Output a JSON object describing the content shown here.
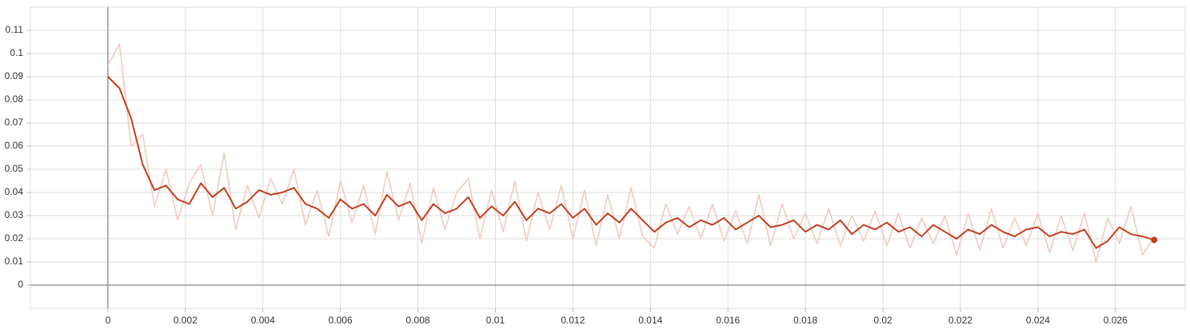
{
  "chart_data": {
    "type": "line",
    "x": [
      0,
      0.0003,
      0.0006,
      0.0009,
      0.0012,
      0.0015,
      0.0018,
      0.0021,
      0.0024,
      0.0027,
      0.003,
      0.0033,
      0.0036,
      0.0039,
      0.0042,
      0.0045,
      0.0048,
      0.0051,
      0.0054,
      0.0057,
      0.006,
      0.0063,
      0.0066,
      0.0069,
      0.0072,
      0.0075,
      0.0078,
      0.0081,
      0.0084,
      0.0087,
      0.009,
      0.0093,
      0.0096,
      0.0099,
      0.0102,
      0.0105,
      0.0108,
      0.0111,
      0.0114,
      0.0117,
      0.012,
      0.0123,
      0.0126,
      0.0129,
      0.0132,
      0.0135,
      0.0138,
      0.0141,
      0.0144,
      0.0147,
      0.015,
      0.0153,
      0.0156,
      0.0159,
      0.0162,
      0.0165,
      0.0168,
      0.0171,
      0.0174,
      0.0177,
      0.018,
      0.0183,
      0.0186,
      0.0189,
      0.0192,
      0.0195,
      0.0198,
      0.0201,
      0.0204,
      0.0207,
      0.021,
      0.0213,
      0.0216,
      0.0219,
      0.0222,
      0.0225,
      0.0228,
      0.0231,
      0.0234,
      0.0237,
      0.024,
      0.0243,
      0.0246,
      0.0249,
      0.0252,
      0.0255,
      0.0258,
      0.0261,
      0.0264,
      0.0267,
      0.027
    ],
    "series": [
      {
        "color": "#c0401f",
        "values": [
          0.09,
          0.085,
          0.072,
          0.052,
          0.041,
          0.043,
          0.037,
          0.035,
          0.044,
          0.038,
          0.042,
          0.033,
          0.036,
          0.041,
          0.039,
          0.04,
          0.042,
          0.035,
          0.033,
          0.029,
          0.037,
          0.033,
          0.035,
          0.03,
          0.039,
          0.034,
          0.036,
          0.028,
          0.035,
          0.031,
          0.033,
          0.038,
          0.029,
          0.034,
          0.03,
          0.036,
          0.028,
          0.033,
          0.031,
          0.035,
          0.029,
          0.033,
          0.026,
          0.031,
          0.027,
          0.033,
          0.028,
          0.023,
          0.027,
          0.029,
          0.025,
          0.028,
          0.026,
          0.029,
          0.024,
          0.027,
          0.03,
          0.025,
          0.026,
          0.028,
          0.023,
          0.026,
          0.024,
          0.028,
          0.022,
          0.026,
          0.024,
          0.027,
          0.023,
          0.025,
          0.021,
          0.026,
          0.023,
          0.02,
          0.024,
          0.022,
          0.026,
          0.023,
          0.021,
          0.024,
          0.025,
          0.021,
          0.023,
          0.022,
          0.024,
          0.016,
          0.019,
          0.025,
          0.022,
          0.021,
          0.0195
        ]
      },
      {
        "color": "#f0c8bd",
        "values": [
          0.095,
          0.104,
          0.06,
          0.065,
          0.034,
          0.05,
          0.028,
          0.044,
          0.052,
          0.03,
          0.057,
          0.024,
          0.043,
          0.029,
          0.046,
          0.035,
          0.05,
          0.026,
          0.041,
          0.021,
          0.045,
          0.027,
          0.043,
          0.022,
          0.049,
          0.028,
          0.044,
          0.018,
          0.042,
          0.024,
          0.04,
          0.046,
          0.02,
          0.041,
          0.023,
          0.045,
          0.019,
          0.04,
          0.024,
          0.043,
          0.02,
          0.041,
          0.017,
          0.039,
          0.02,
          0.042,
          0.021,
          0.016,
          0.035,
          0.022,
          0.034,
          0.02,
          0.035,
          0.019,
          0.032,
          0.018,
          0.039,
          0.017,
          0.035,
          0.02,
          0.031,
          0.018,
          0.033,
          0.017,
          0.03,
          0.019,
          0.032,
          0.017,
          0.031,
          0.016,
          0.029,
          0.018,
          0.03,
          0.013,
          0.031,
          0.015,
          0.033,
          0.016,
          0.029,
          0.017,
          0.031,
          0.014,
          0.03,
          0.015,
          0.031,
          0.01,
          0.029,
          0.018,
          0.034,
          0.013,
          0.021
        ]
      }
    ],
    "xlim": [
      -0.002,
      0.0278
    ],
    "ylim": [
      -0.01,
      0.12
    ],
    "xticks": [
      0,
      0.002,
      0.004,
      0.006,
      0.008,
      0.01,
      0.012,
      0.014,
      0.016,
      0.018,
      0.02,
      0.022,
      0.024,
      0.026
    ],
    "yticks": [
      0,
      0.01,
      0.02,
      0.03,
      0.04,
      0.05,
      0.06,
      0.07,
      0.08,
      0.09,
      0.1,
      0.11
    ],
    "grid": true
  }
}
